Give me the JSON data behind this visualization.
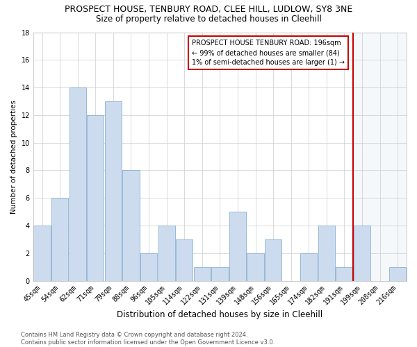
{
  "title": "PROSPECT HOUSE, TENBURY ROAD, CLEE HILL, LUDLOW, SY8 3NE",
  "subtitle": "Size of property relative to detached houses in Cleehill",
  "xlabel": "Distribution of detached houses by size in Cleehill",
  "ylabel": "Number of detached properties",
  "categories": [
    "45sqm",
    "54sqm",
    "62sqm",
    "71sqm",
    "79sqm",
    "88sqm",
    "96sqm",
    "105sqm",
    "114sqm",
    "122sqm",
    "131sqm",
    "139sqm",
    "148sqm",
    "156sqm",
    "165sqm",
    "174sqm",
    "182sqm",
    "191sqm",
    "199sqm",
    "208sqm",
    "216sqm"
  ],
  "values": [
    4,
    6,
    14,
    12,
    13,
    8,
    2,
    4,
    3,
    1,
    1,
    5,
    2,
    3,
    0,
    2,
    4,
    1,
    4,
    0,
    1
  ],
  "bar_color": "#ccdcee",
  "bar_edge_color": "#8ab0d0",
  "highlight_color": "#dce8f5",
  "grid_color": "#cccccc",
  "ref_line_x": 17.5,
  "ref_line_color": "#cc0000",
  "annotation_text": "PROSPECT HOUSE TENBURY ROAD: 196sqm\n← 99% of detached houses are smaller (84)\n1% of semi-detached houses are larger (1) →",
  "annotation_box_color": "#cc0000",
  "ylim": [
    0,
    18
  ],
  "yticks": [
    0,
    2,
    4,
    6,
    8,
    10,
    12,
    14,
    16,
    18
  ],
  "footer": "Contains HM Land Registry data © Crown copyright and database right 2024.\nContains public sector information licensed under the Open Government Licence v3.0.",
  "title_fontsize": 9,
  "subtitle_fontsize": 8.5,
  "xlabel_fontsize": 8.5,
  "ylabel_fontsize": 7.5,
  "tick_fontsize": 7,
  "annotation_fontsize": 7,
  "footer_fontsize": 6,
  "background_color": "#ffffff"
}
